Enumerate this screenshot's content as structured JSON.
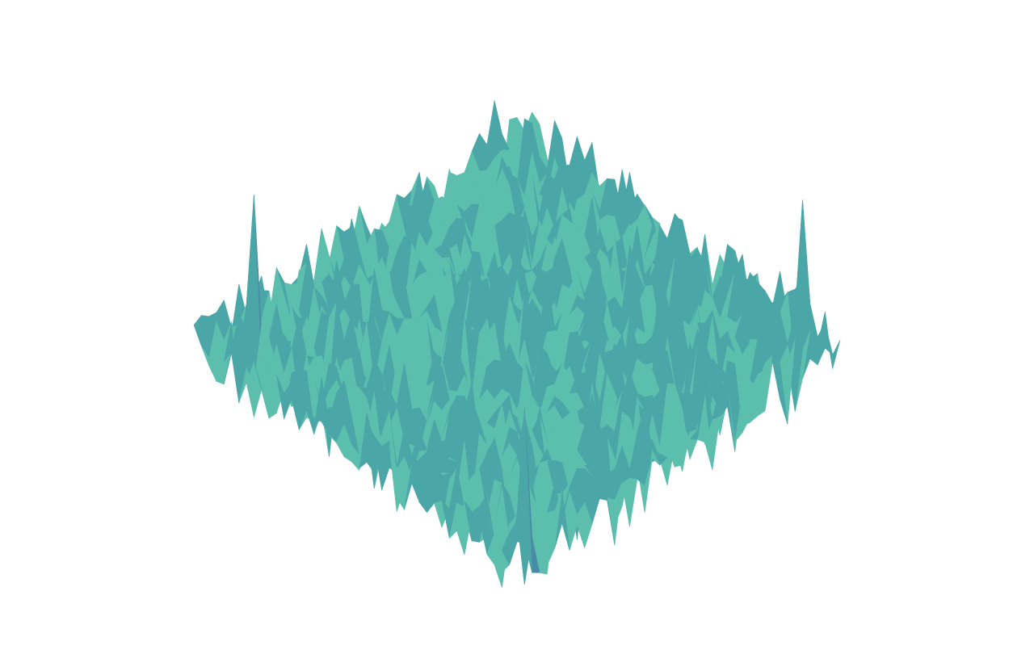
{
  "chart_data": {
    "type": "surface",
    "title": "",
    "xlabel": "",
    "ylabel": "",
    "zlabel": "",
    "axes_visible": false,
    "grid": false,
    "legend": "none",
    "colorscale": [
      "#7ed3b3",
      "#5cbfad",
      "#4aa6a7",
      "#4a8ba5",
      "#4a6fa0",
      "#3c4f86"
    ],
    "generator": {
      "kind": "random-noise-surface",
      "grid_size": 44,
      "seed": 7,
      "base_level": 0.0,
      "noise_amplitude": 1.0,
      "spike_count": 3,
      "spike_height": 3.2
    },
    "z_range": [
      -1.4,
      3.4
    ]
  }
}
